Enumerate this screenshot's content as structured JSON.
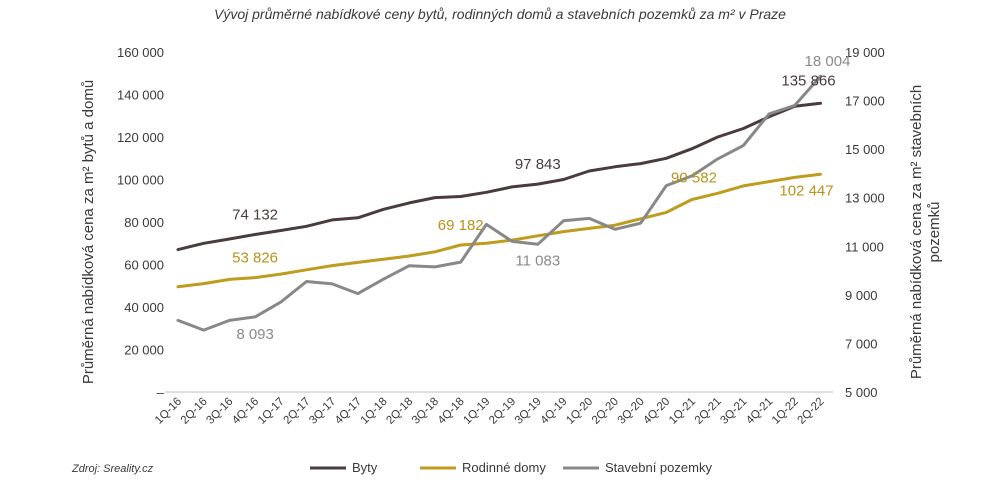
{
  "chart_data": {
    "type": "line",
    "title": "Vývoj průměrné nabídkové ceny bytů, rodinných domů a stavebních pozemků za m² v Praze",
    "source": "Zdroj: Sreality.cz",
    "ylabel": "Průměrná nabídková cena za m² bytů a domů",
    "y2label": "Průměrná nabídková cena za m² stavebních pozemků",
    "categories": [
      "1Q-16",
      "2Q-16",
      "3Q-16",
      "4Q-16",
      "1Q-17",
      "2Q-17",
      "3Q-17",
      "4Q-17",
      "1Q-18",
      "2Q-18",
      "3Q-18",
      "4Q-18",
      "1Q-19",
      "2Q-19",
      "3Q-19",
      "4Q-19",
      "1Q-20",
      "2Q-20",
      "3Q-20",
      "4Q-20",
      "1Q-21",
      "2Q-21",
      "3Q-21",
      "4Q-21",
      "1Q-22",
      "2Q-22"
    ],
    "ylim": [
      0,
      160000
    ],
    "yticks": [
      "–",
      "20 000",
      "40 000",
      "60 000",
      "80 000",
      "100 000",
      "120 000",
      "140 000",
      "160 000"
    ],
    "y2lim": [
      5000,
      19000
    ],
    "y2ticks": [
      "5 000",
      "7 000",
      "9 000",
      "11 000",
      "13 000",
      "15 000",
      "17 000",
      "19 000"
    ],
    "series": [
      {
        "name": "Byty",
        "axis": "left",
        "color": "#4a3c3c",
        "values": [
          67000,
          70000,
          72000,
          74132,
          76000,
          78000,
          81000,
          82000,
          86000,
          89000,
          91500,
          92000,
          94000,
          96500,
          97843,
          100000,
          104000,
          106000,
          107500,
          110000,
          114500,
          120000,
          124000,
          129500,
          134500,
          135866
        ],
        "labels": [
          {
            "i": 3,
            "text": "74 132"
          },
          {
            "i": 14,
            "text": "97 843"
          },
          {
            "i": 25,
            "text": "135 866"
          }
        ]
      },
      {
        "name": "Rodinné domy",
        "axis": "left",
        "color": "#bf9b1e",
        "values": [
          49500,
          51000,
          53000,
          53826,
          55500,
          57500,
          59500,
          61000,
          62500,
          64000,
          66000,
          69182,
          70000,
          71500,
          73500,
          75500,
          77000,
          78500,
          81500,
          84500,
          90582,
          93500,
          97000,
          99000,
          101000,
          102447
        ],
        "labels": [
          {
            "i": 3,
            "text": "53 826"
          },
          {
            "i": 11,
            "text": "69 182"
          },
          {
            "i": 20,
            "text": "90 582"
          },
          {
            "i": 25,
            "text": "102 447"
          }
        ]
      },
      {
        "name": "Stavební pozemky",
        "axis": "right",
        "color": "#888888",
        "values": [
          7950,
          7550,
          7950,
          8093,
          8700,
          9550,
          9450,
          9050,
          9650,
          10200,
          10150,
          10350,
          11900,
          11200,
          11083,
          12050,
          12150,
          11700,
          11950,
          13500,
          13900,
          14600,
          15150,
          16450,
          16800,
          18004
        ],
        "labels": [
          {
            "i": 3,
            "text": "8 093"
          },
          {
            "i": 14,
            "text": "11 083"
          },
          {
            "i": 25,
            "text": "18 004"
          }
        ]
      }
    ],
    "legend": {
      "position": "bottom",
      "items": [
        "Byty",
        "Rodinné domy",
        "Stavební pozemky"
      ]
    },
    "grid": false
  }
}
